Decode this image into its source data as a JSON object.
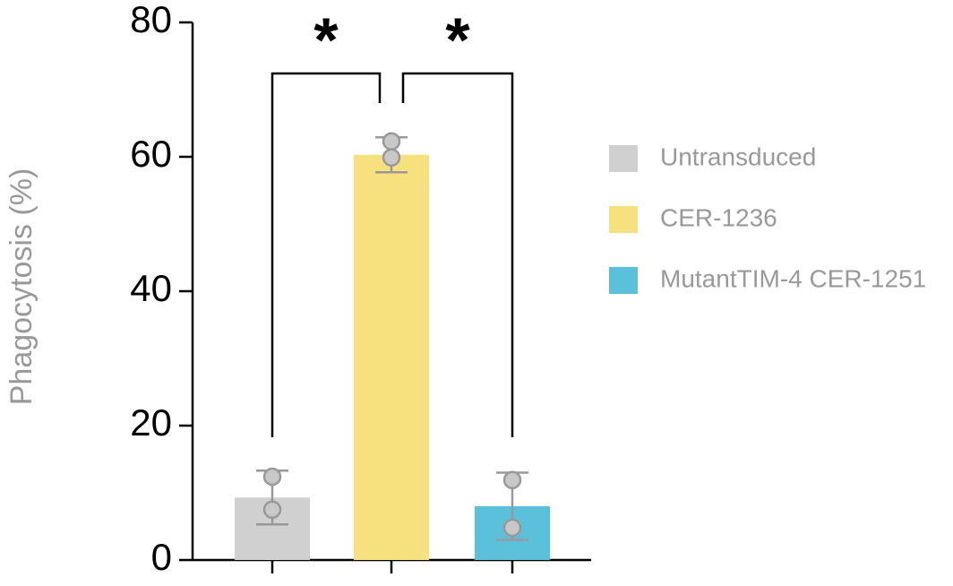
{
  "chart_data": {
    "type": "bar",
    "y_label": "Phagocytosis (%)",
    "categories": [
      null,
      null,
      null
    ],
    "values": [
      9.3,
      60.3,
      8.0
    ],
    "errors": [
      4.0,
      2.6,
      5.0
    ],
    "points": [
      [
        12.4,
        7.5
      ],
      [
        62.3,
        59.9
      ],
      [
        11.9,
        4.8
      ]
    ],
    "colors": [
      "#d0d0d0",
      "#f7e07e",
      "#5bc0d9"
    ],
    "legend": [
      "Untransduced",
      "CER-1236",
      "MutantTIM-4 CER-1251"
    ],
    "significance": [
      "*",
      "*"
    ],
    "ylim": [
      0,
      80
    ],
    "yticks": [
      0,
      20,
      40,
      60,
      80
    ]
  }
}
